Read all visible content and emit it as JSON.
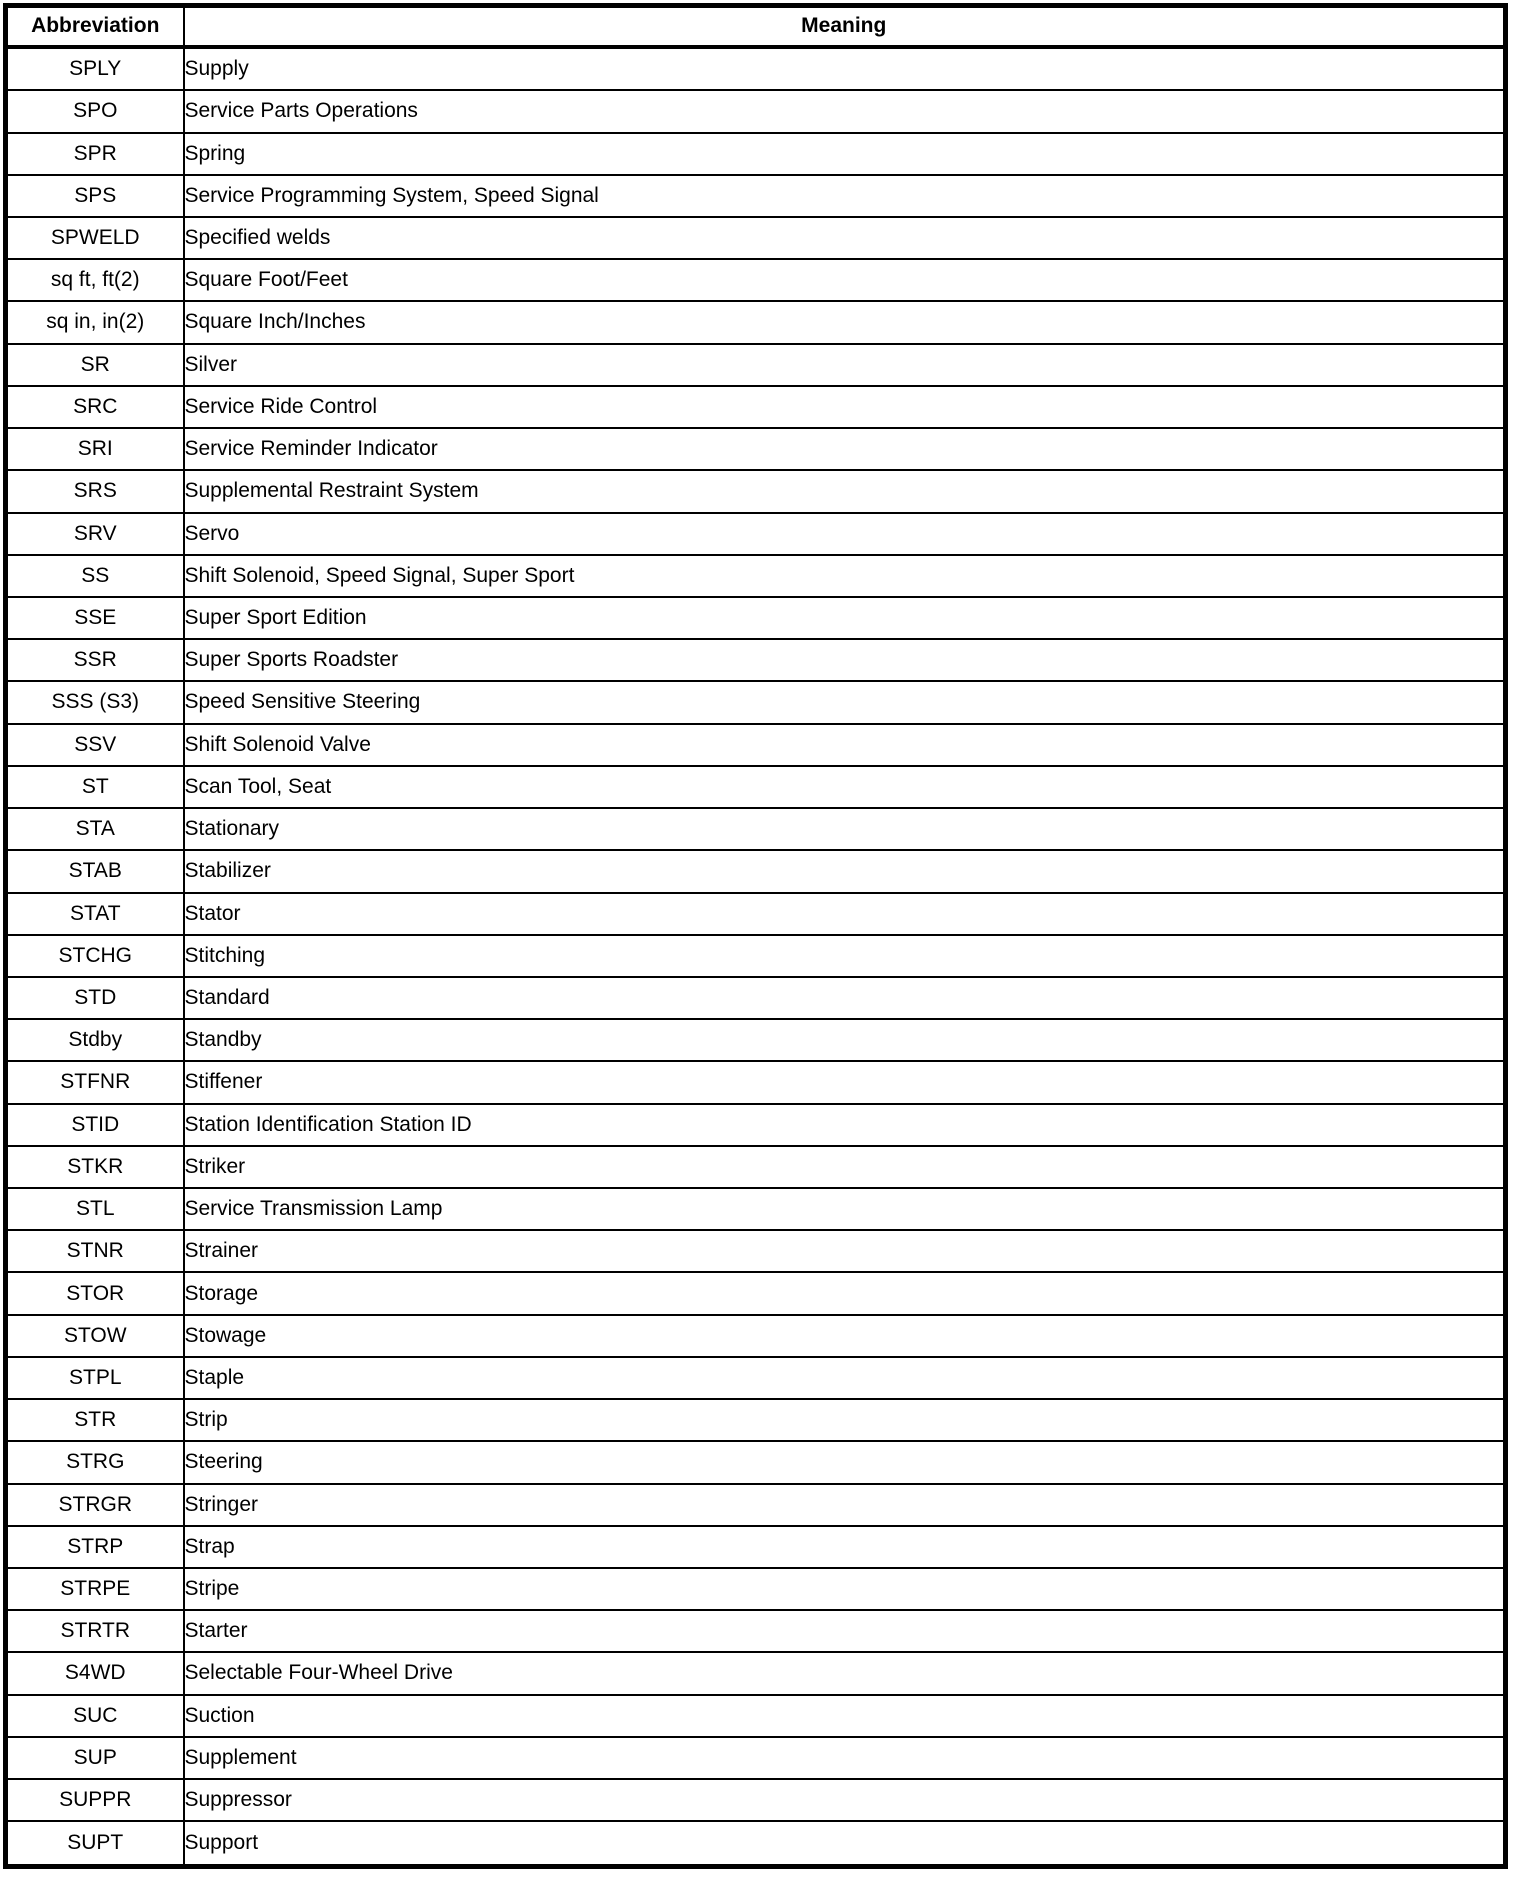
{
  "table": {
    "columns": [
      "Abbreviation",
      "Meaning"
    ],
    "rows": [
      {
        "abbr": "SPLY",
        "meaning": "Supply"
      },
      {
        "abbr": "SPO",
        "meaning": "Service Parts Operations"
      },
      {
        "abbr": "SPR",
        "meaning": "Spring"
      },
      {
        "abbr": "SPS",
        "meaning": "Service Programming System, Speed Signal"
      },
      {
        "abbr": "SPWELD",
        "meaning": "Specified welds"
      },
      {
        "abbr": "sq ft, ft(2)",
        "meaning": "Square Foot/Feet"
      },
      {
        "abbr": "sq in, in(2)",
        "meaning": "Square Inch/Inches"
      },
      {
        "abbr": "SR",
        "meaning": "Silver"
      },
      {
        "abbr": "SRC",
        "meaning": "Service Ride Control"
      },
      {
        "abbr": "SRI",
        "meaning": "Service Reminder Indicator"
      },
      {
        "abbr": "SRS",
        "meaning": "Supplemental Restraint System"
      },
      {
        "abbr": "SRV",
        "meaning": "Servo"
      },
      {
        "abbr": "SS",
        "meaning": "Shift Solenoid, Speed Signal, Super Sport"
      },
      {
        "abbr": "SSE",
        "meaning": "Super Sport Edition"
      },
      {
        "abbr": "SSR",
        "meaning": "Super Sports Roadster"
      },
      {
        "abbr": "SSS (S3)",
        "meaning": "Speed Sensitive Steering"
      },
      {
        "abbr": "SSV",
        "meaning": "Shift Solenoid Valve"
      },
      {
        "abbr": "ST",
        "meaning": "Scan Tool, Seat"
      },
      {
        "abbr": "STA",
        "meaning": "Stationary"
      },
      {
        "abbr": "STAB",
        "meaning": "Stabilizer"
      },
      {
        "abbr": "STAT",
        "meaning": "Stator"
      },
      {
        "abbr": "STCHG",
        "meaning": "Stitching"
      },
      {
        "abbr": "STD",
        "meaning": "Standard"
      },
      {
        "abbr": "Stdby",
        "meaning": "Standby"
      },
      {
        "abbr": "STFNR",
        "meaning": "Stiffener"
      },
      {
        "abbr": "STID",
        "meaning": "Station Identification Station ID"
      },
      {
        "abbr": "STKR",
        "meaning": "Striker"
      },
      {
        "abbr": "STL",
        "meaning": "Service Transmission Lamp"
      },
      {
        "abbr": "STNR",
        "meaning": "Strainer"
      },
      {
        "abbr": "STOR",
        "meaning": "Storage"
      },
      {
        "abbr": "STOW",
        "meaning": "Stowage"
      },
      {
        "abbr": "STPL",
        "meaning": "Staple"
      },
      {
        "abbr": "STR",
        "meaning": "Strip"
      },
      {
        "abbr": "STRG",
        "meaning": "Steering"
      },
      {
        "abbr": "STRGR",
        "meaning": "Stringer"
      },
      {
        "abbr": "STRP",
        "meaning": "Strap"
      },
      {
        "abbr": "STRPE",
        "meaning": "Stripe"
      },
      {
        "abbr": "STRTR",
        "meaning": "Starter"
      },
      {
        "abbr": "S4WD",
        "meaning": "Selectable Four-Wheel Drive"
      },
      {
        "abbr": "SUC",
        "meaning": "Suction"
      },
      {
        "abbr": "SUP",
        "meaning": "Supplement"
      },
      {
        "abbr": "SUPPR",
        "meaning": "Suppressor"
      },
      {
        "abbr": "SUPT",
        "meaning": "Support"
      }
    ]
  }
}
